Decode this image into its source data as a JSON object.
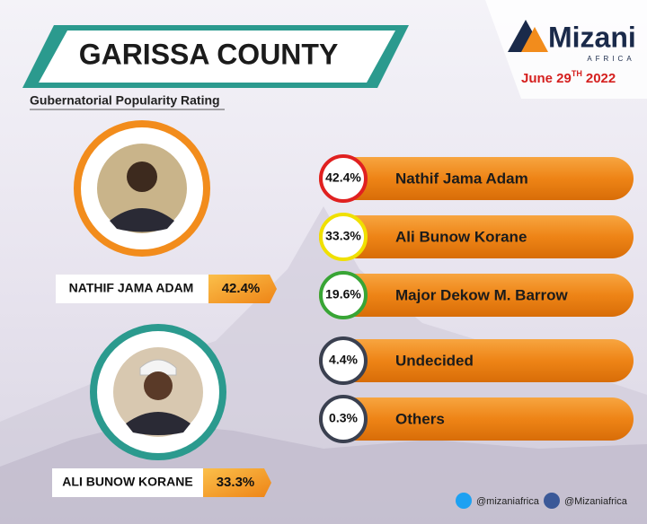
{
  "header": {
    "title": "GARISSA COUNTY",
    "subtitle": "Gubernatorial Popularity Rating"
  },
  "brand": {
    "name": "Mizani",
    "sub": "AFRICA",
    "date": {
      "day": "June 29",
      "suffix": "TH",
      "year": "2022"
    }
  },
  "candidates": [
    {
      "name": "NATHIF JAMA ADAM",
      "rating": "42.4%"
    },
    {
      "name": "ALI BUNOW KORANE",
      "rating": "33.3%"
    }
  ],
  "ratings": [
    {
      "value": "42.4%",
      "label": "Nathif Jama Adam"
    },
    {
      "value": "33.3%",
      "label": "Ali Bunow Korane"
    },
    {
      "value": "19.6%",
      "label": "Major Dekow M. Barrow"
    },
    {
      "value": "4.4%",
      "label": "Undecided"
    },
    {
      "value": "0.3%",
      "label": "Others"
    }
  ],
  "social": {
    "twitter": "@mizaniafrica",
    "facebook": "@Mizaniafrica"
  }
}
